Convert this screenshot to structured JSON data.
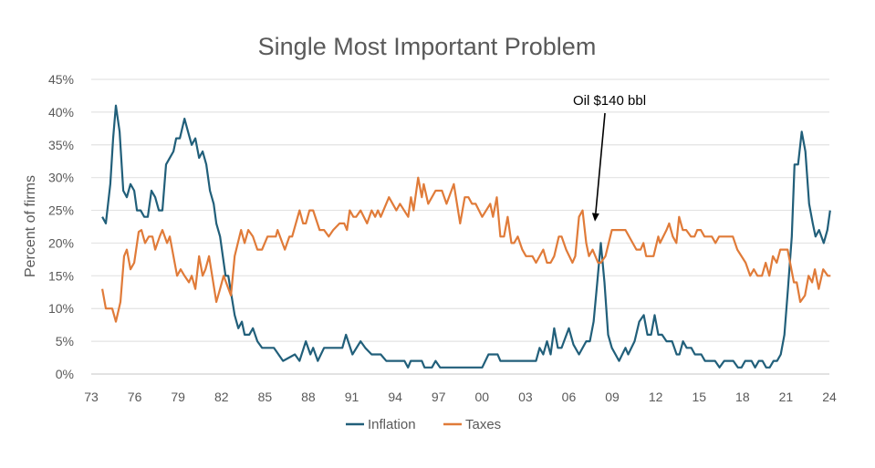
{
  "chart_data": {
    "type": "line",
    "title": "Single Most Important Problem",
    "ylabel": "Percent of firms",
    "xlabel": "",
    "xlim": [
      1973,
      2024
    ],
    "ylim": [
      0,
      45
    ],
    "x_tick_labels": [
      "73",
      "76",
      "79",
      "82",
      "85",
      "88",
      "91",
      "94",
      "97",
      "00",
      "03",
      "06",
      "09",
      "12",
      "15",
      "18",
      "21",
      "24"
    ],
    "y_tick_labels": [
      "0%",
      "5%",
      "10%",
      "15%",
      "20%",
      "25%",
      "30%",
      "35%",
      "40%",
      "45%"
    ],
    "grid": "horizontal",
    "legend_position": "bottom",
    "annotation": {
      "text": "Oil $140 bbl",
      "x": 2007.8,
      "y": 23.3
    },
    "series": [
      {
        "name": "Inflation",
        "color": "#215F7A",
        "points": [
          [
            1973.76,
            24
          ],
          [
            1974.01,
            23
          ],
          [
            1974.32,
            29
          ],
          [
            1974.51,
            36
          ],
          [
            1974.7,
            41
          ],
          [
            1974.96,
            37
          ],
          [
            1975.21,
            28
          ],
          [
            1975.46,
            27
          ],
          [
            1975.71,
            29
          ],
          [
            1975.97,
            28
          ],
          [
            1976.16,
            25
          ],
          [
            1976.41,
            25
          ],
          [
            1976.66,
            24
          ],
          [
            1976.91,
            24
          ],
          [
            1977.16,
            28
          ],
          [
            1977.42,
            27
          ],
          [
            1977.67,
            25
          ],
          [
            1977.92,
            25
          ],
          [
            1978.17,
            32
          ],
          [
            1978.43,
            33
          ],
          [
            1978.68,
            34
          ],
          [
            1978.87,
            36
          ],
          [
            1979.12,
            36
          ],
          [
            1979.44,
            39
          ],
          [
            1979.69,
            37
          ],
          [
            1979.94,
            35
          ],
          [
            1980.19,
            36
          ],
          [
            1980.45,
            33
          ],
          [
            1980.7,
            34
          ],
          [
            1980.95,
            32
          ],
          [
            1981.2,
            28
          ],
          [
            1981.46,
            26
          ],
          [
            1981.64,
            23
          ],
          [
            1981.9,
            21
          ],
          [
            1982.28,
            15
          ],
          [
            1982.47,
            15
          ],
          [
            1982.91,
            9
          ],
          [
            1983.16,
            7
          ],
          [
            1983.41,
            8
          ],
          [
            1983.6,
            6
          ],
          [
            1983.92,
            6
          ],
          [
            1984.17,
            7
          ],
          [
            1984.48,
            5
          ],
          [
            1984.8,
            4
          ],
          [
            1985.62,
            4
          ],
          [
            1986.25,
            2
          ],
          [
            1987.07,
            3
          ],
          [
            1987.39,
            2
          ],
          [
            1987.83,
            5
          ],
          [
            1988.14,
            3
          ],
          [
            1988.33,
            4
          ],
          [
            1988.65,
            2
          ],
          [
            1989.09,
            4
          ],
          [
            1990.35,
            4
          ],
          [
            1990.6,
            6
          ],
          [
            1991.05,
            3
          ],
          [
            1991.61,
            5
          ],
          [
            1991.93,
            4
          ],
          [
            1992.37,
            3
          ],
          [
            1993.0,
            3
          ],
          [
            1993.38,
            2
          ],
          [
            1994.64,
            2
          ],
          [
            1994.89,
            1
          ],
          [
            1995.08,
            2
          ],
          [
            1995.84,
            2
          ],
          [
            1996.03,
            1
          ],
          [
            1996.54,
            1
          ],
          [
            1996.79,
            2
          ],
          [
            1997.1,
            1
          ],
          [
            2000.01,
            1
          ],
          [
            2000.45,
            3
          ],
          [
            2001.08,
            3
          ],
          [
            2001.27,
            2
          ],
          [
            2003.73,
            2
          ],
          [
            2003.98,
            4
          ],
          [
            2004.23,
            3
          ],
          [
            2004.49,
            5
          ],
          [
            2004.74,
            3
          ],
          [
            2004.99,
            7
          ],
          [
            2005.24,
            4
          ],
          [
            2005.5,
            4
          ],
          [
            2006.0,
            7
          ],
          [
            2006.32,
            4.5
          ],
          [
            2006.7,
            3
          ],
          [
            2007.2,
            5
          ],
          [
            2007.45,
            5
          ],
          [
            2007.71,
            8
          ],
          [
            2007.96,
            14
          ],
          [
            2008.21,
            20
          ],
          [
            2008.46,
            14
          ],
          [
            2008.71,
            6
          ],
          [
            2008.97,
            4
          ],
          [
            2009.47,
            2
          ],
          [
            2009.91,
            4
          ],
          [
            2010.1,
            3
          ],
          [
            2010.54,
            5
          ],
          [
            2010.86,
            8
          ],
          [
            2011.18,
            9
          ],
          [
            2011.43,
            6
          ],
          [
            2011.68,
            6
          ],
          [
            2011.93,
            9
          ],
          [
            2012.18,
            6
          ],
          [
            2012.44,
            6
          ],
          [
            2012.75,
            5
          ],
          [
            2013.13,
            5
          ],
          [
            2013.45,
            3
          ],
          [
            2013.64,
            3
          ],
          [
            2013.89,
            5
          ],
          [
            2014.14,
            4
          ],
          [
            2014.46,
            4
          ],
          [
            2014.71,
            3
          ],
          [
            2015.15,
            3
          ],
          [
            2015.4,
            2
          ],
          [
            2016.1,
            2
          ],
          [
            2016.41,
            1
          ],
          [
            2016.73,
            2
          ],
          [
            2017.36,
            2
          ],
          [
            2017.68,
            1
          ],
          [
            2017.93,
            1
          ],
          [
            2018.18,
            2
          ],
          [
            2018.62,
            2
          ],
          [
            2018.87,
            1
          ],
          [
            2019.13,
            2
          ],
          [
            2019.38,
            2
          ],
          [
            2019.63,
            1
          ],
          [
            2019.88,
            1
          ],
          [
            2020.14,
            2
          ],
          [
            2020.39,
            2
          ],
          [
            2020.64,
            3
          ],
          [
            2020.89,
            6
          ],
          [
            2021.14,
            13
          ],
          [
            2021.4,
            21
          ],
          [
            2021.59,
            32
          ],
          [
            2021.84,
            32
          ],
          [
            2022.09,
            37
          ],
          [
            2022.34,
            34
          ],
          [
            2022.6,
            26
          ],
          [
            2022.85,
            23
          ],
          [
            2023.04,
            21
          ],
          [
            2023.29,
            22
          ],
          [
            2023.61,
            20
          ],
          [
            2023.86,
            22
          ],
          [
            2024.05,
            25
          ]
        ]
      },
      {
        "name": "Taxes",
        "color": "#E07B39",
        "points": [
          [
            1973.76,
            13
          ],
          [
            1974.01,
            10
          ],
          [
            1974.45,
            10
          ],
          [
            1974.7,
            8
          ],
          [
            1975.02,
            11
          ],
          [
            1975.27,
            18
          ],
          [
            1975.46,
            19
          ],
          [
            1975.71,
            16
          ],
          [
            1975.97,
            17
          ],
          [
            1976.28,
            21.7
          ],
          [
            1976.47,
            22
          ],
          [
            1976.72,
            20
          ],
          [
            1976.98,
            21
          ],
          [
            1977.23,
            21
          ],
          [
            1977.42,
            19
          ],
          [
            1977.73,
            21
          ],
          [
            1977.92,
            22
          ],
          [
            1978.24,
            20
          ],
          [
            1978.43,
            21
          ],
          [
            1978.68,
            18
          ],
          [
            1978.93,
            15
          ],
          [
            1979.18,
            16
          ],
          [
            1979.44,
            15
          ],
          [
            1979.75,
            14
          ],
          [
            1979.94,
            15
          ],
          [
            1980.19,
            13
          ],
          [
            1980.45,
            18
          ],
          [
            1980.7,
            15
          ],
          [
            1980.89,
            16
          ],
          [
            1981.14,
            18
          ],
          [
            1981.64,
            11
          ],
          [
            1981.9,
            13
          ],
          [
            1982.15,
            15
          ],
          [
            1982.65,
            12
          ],
          [
            1982.91,
            18
          ],
          [
            1983.35,
            22
          ],
          [
            1983.6,
            20
          ],
          [
            1983.85,
            22
          ],
          [
            1984.17,
            21
          ],
          [
            1984.48,
            19
          ],
          [
            1984.8,
            19
          ],
          [
            1985.18,
            21
          ],
          [
            1985.75,
            21
          ],
          [
            1985.87,
            22
          ],
          [
            1986.38,
            19
          ],
          [
            1986.69,
            21
          ],
          [
            1986.88,
            21
          ],
          [
            1987.39,
            25
          ],
          [
            1987.64,
            23
          ],
          [
            1987.83,
            23
          ],
          [
            1988.08,
            25
          ],
          [
            1988.33,
            25
          ],
          [
            1988.78,
            22
          ],
          [
            1989.09,
            22
          ],
          [
            1989.41,
            21
          ],
          [
            1989.72,
            22
          ],
          [
            1990.16,
            23
          ],
          [
            1990.48,
            23
          ],
          [
            1990.67,
            22
          ],
          [
            1990.86,
            25
          ],
          [
            1991.11,
            24
          ],
          [
            1991.3,
            24
          ],
          [
            1991.61,
            25
          ],
          [
            1992.06,
            23
          ],
          [
            1992.37,
            25
          ],
          [
            1992.62,
            24
          ],
          [
            1992.81,
            25
          ],
          [
            1993.0,
            24
          ],
          [
            1993.57,
            27
          ],
          [
            1994.08,
            25
          ],
          [
            1994.33,
            26
          ],
          [
            1994.9,
            24
          ],
          [
            1995.09,
            27
          ],
          [
            1995.27,
            25
          ],
          [
            1995.59,
            30
          ],
          [
            1995.84,
            27
          ],
          [
            1995.97,
            29
          ],
          [
            1996.28,
            26
          ],
          [
            1996.79,
            28
          ],
          [
            1997.23,
            28
          ],
          [
            1997.55,
            26
          ],
          [
            1998.05,
            29
          ],
          [
            1998.49,
            23
          ],
          [
            1998.81,
            27
          ],
          [
            1999.06,
            27
          ],
          [
            1999.31,
            26
          ],
          [
            1999.56,
            26
          ],
          [
            2000.01,
            24
          ],
          [
            2000.57,
            26
          ],
          [
            2000.76,
            24
          ],
          [
            2001.02,
            27
          ],
          [
            2001.27,
            21
          ],
          [
            2001.52,
            21
          ],
          [
            2001.77,
            24
          ],
          [
            2002.03,
            20
          ],
          [
            2002.21,
            20
          ],
          [
            2002.47,
            21
          ],
          [
            2002.78,
            19
          ],
          [
            2003.04,
            18
          ],
          [
            2003.48,
            18
          ],
          [
            2003.73,
            17
          ],
          [
            2004.23,
            19
          ],
          [
            2004.49,
            17
          ],
          [
            2004.74,
            17
          ],
          [
            2004.99,
            18
          ],
          [
            2005.31,
            21
          ],
          [
            2005.5,
            21
          ],
          [
            2005.81,
            19
          ],
          [
            2006.25,
            17
          ],
          [
            2006.44,
            18
          ],
          [
            2006.7,
            24
          ],
          [
            2006.95,
            25
          ],
          [
            2007.2,
            20
          ],
          [
            2007.39,
            18
          ],
          [
            2007.64,
            19
          ],
          [
            2008.02,
            17
          ],
          [
            2008.21,
            17
          ],
          [
            2008.53,
            18
          ],
          [
            2008.97,
            22
          ],
          [
            2009.91,
            22
          ],
          [
            2010.67,
            19
          ],
          [
            2010.96,
            19
          ],
          [
            2011.15,
            20
          ],
          [
            2011.34,
            18
          ],
          [
            2011.85,
            18
          ],
          [
            2012.18,
            21
          ],
          [
            2012.3,
            20
          ],
          [
            2012.75,
            22
          ],
          [
            2012.93,
            23
          ],
          [
            2013.18,
            21
          ],
          [
            2013.43,
            20
          ],
          [
            2013.62,
            24
          ],
          [
            2013.87,
            22
          ],
          [
            2014.11,
            22
          ],
          [
            2014.43,
            21
          ],
          [
            2014.68,
            21
          ],
          [
            2014.87,
            22
          ],
          [
            2015.12,
            22
          ],
          [
            2015.37,
            21
          ],
          [
            2015.88,
            21
          ],
          [
            2016.13,
            20
          ],
          [
            2016.38,
            21
          ],
          [
            2017.33,
            21
          ],
          [
            2017.64,
            19
          ],
          [
            2018.21,
            17
          ],
          [
            2018.53,
            15
          ],
          [
            2018.78,
            16
          ],
          [
            2019.03,
            15
          ],
          [
            2019.34,
            15
          ],
          [
            2019.6,
            17
          ],
          [
            2019.85,
            15
          ],
          [
            2020.1,
            18
          ],
          [
            2020.36,
            17
          ],
          [
            2020.61,
            19
          ],
          [
            2021.11,
            19
          ],
          [
            2021.55,
            14
          ],
          [
            2021.74,
            14
          ],
          [
            2021.99,
            11
          ],
          [
            2022.31,
            12
          ],
          [
            2022.56,
            15
          ],
          [
            2022.81,
            14
          ],
          [
            2023.0,
            16
          ],
          [
            2023.26,
            13
          ],
          [
            2023.57,
            16
          ],
          [
            2023.89,
            15
          ],
          [
            2024.08,
            15
          ]
        ]
      }
    ]
  }
}
